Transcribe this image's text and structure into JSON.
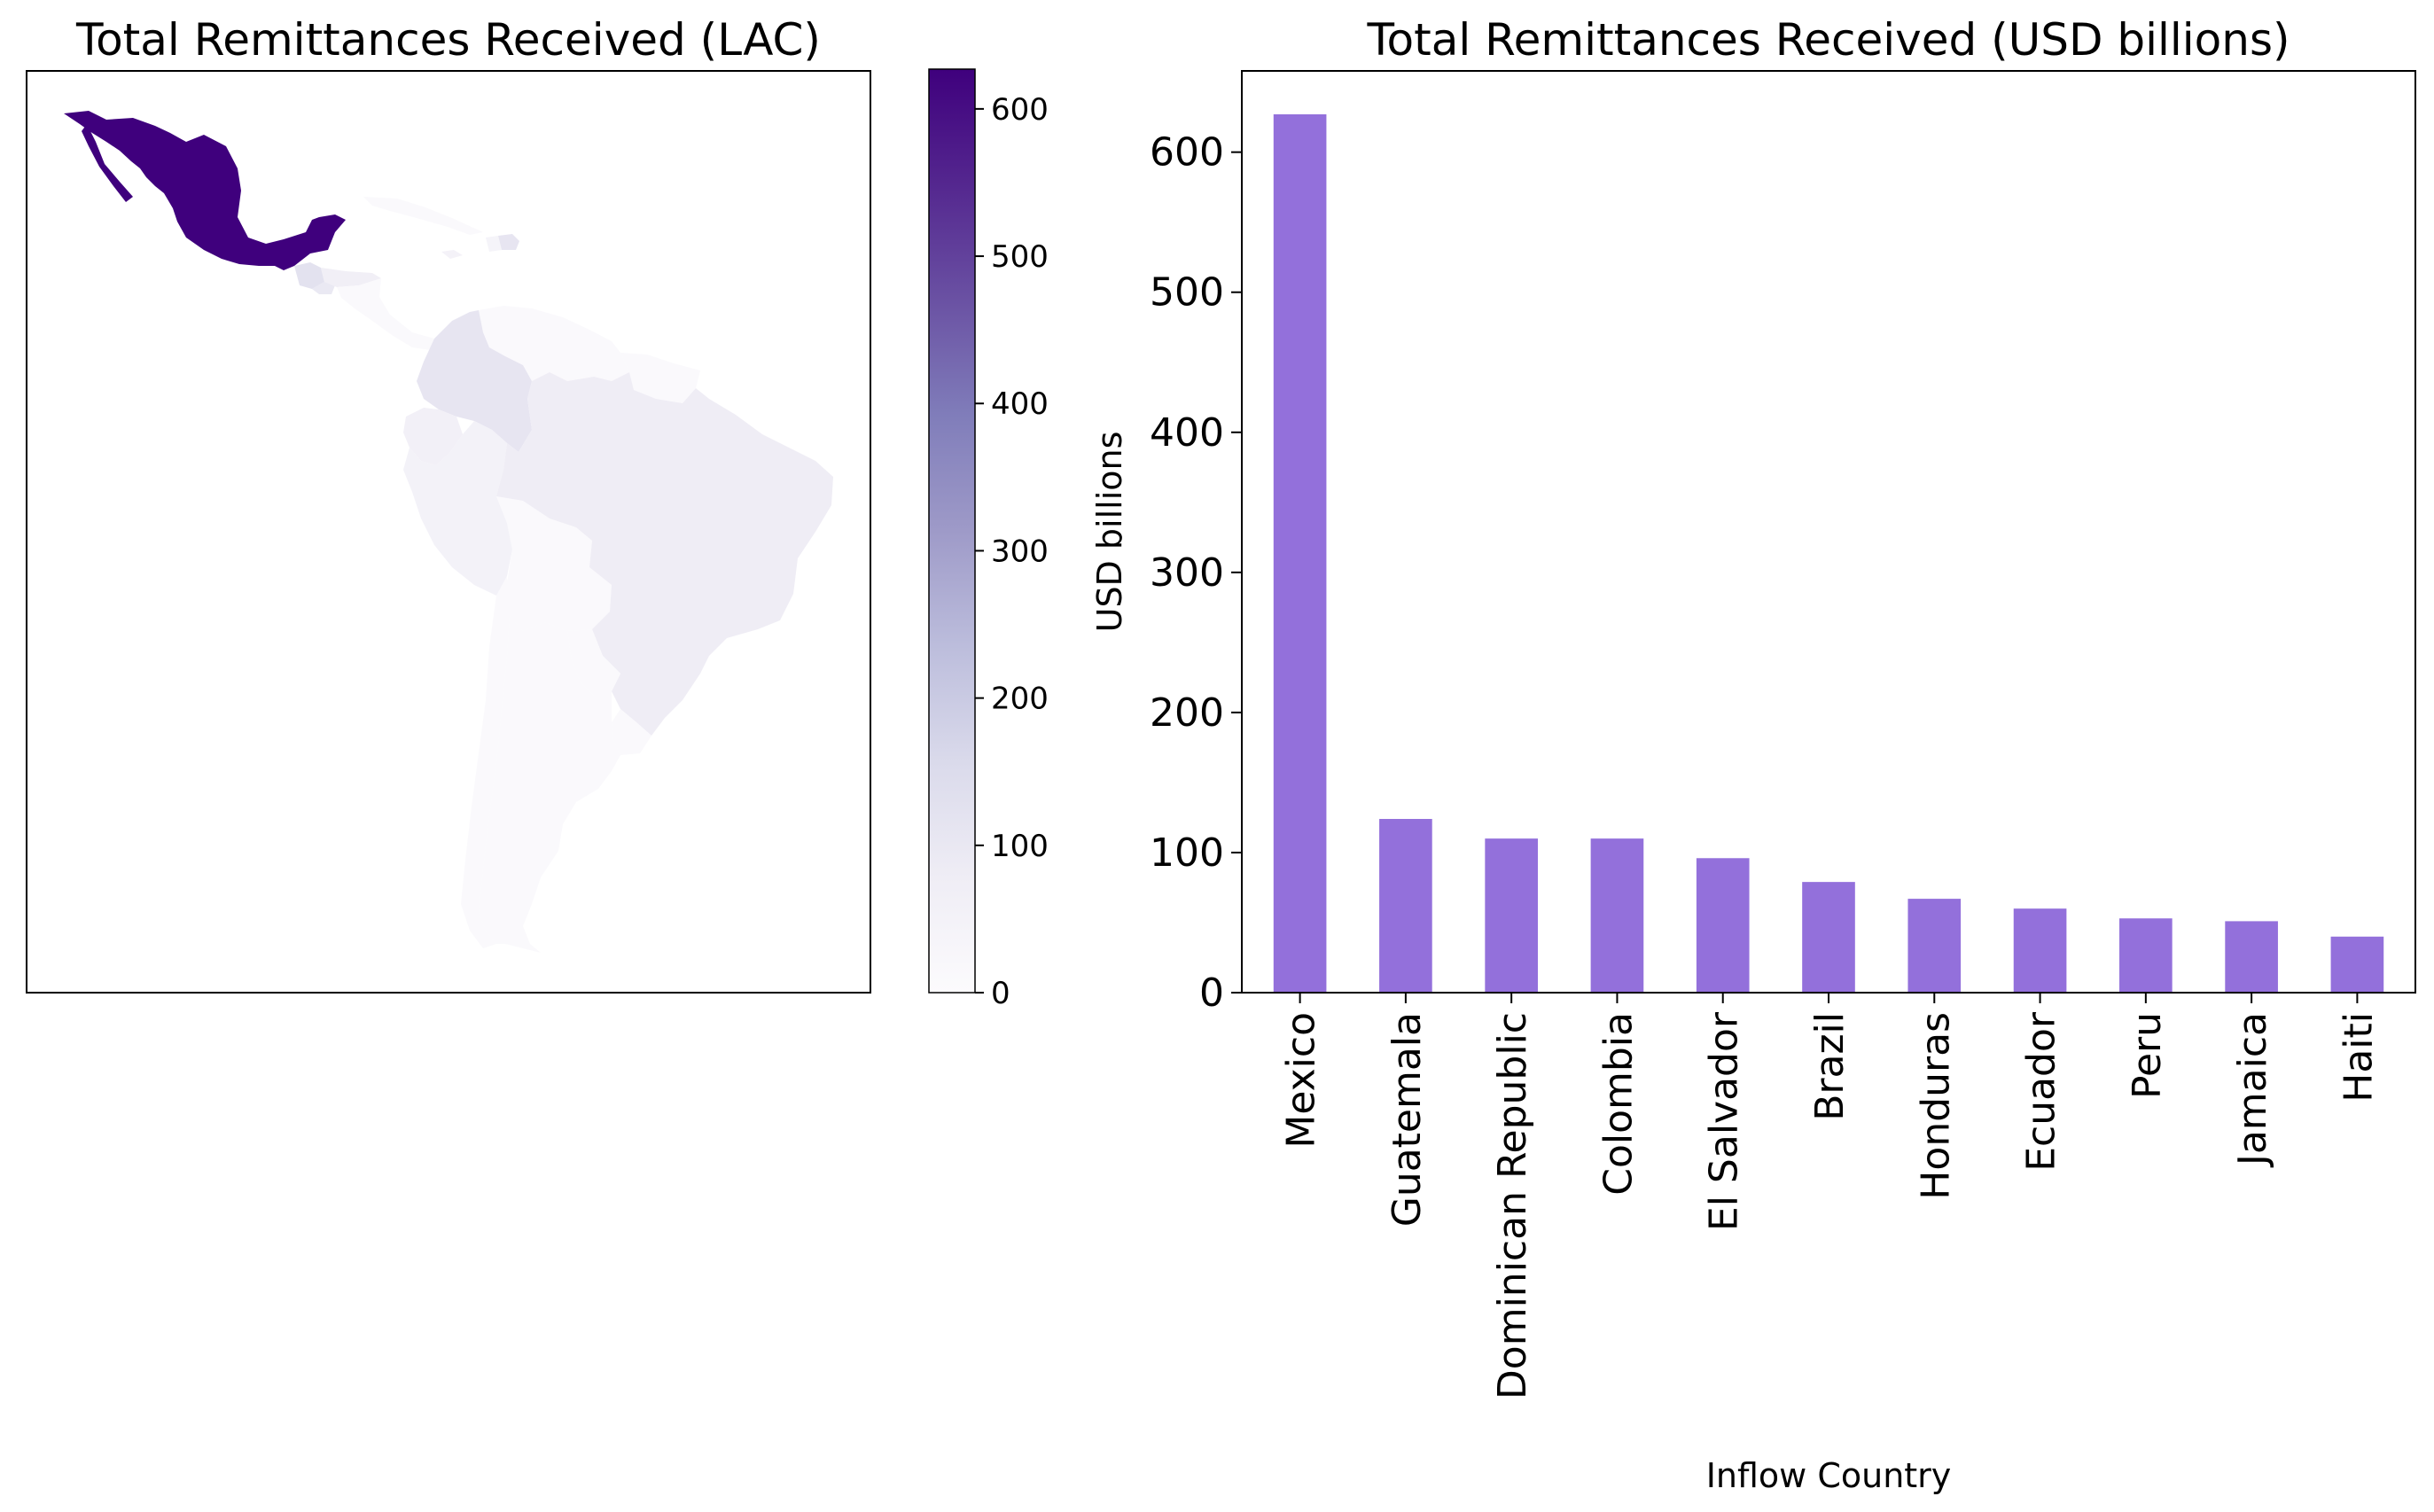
{
  "chart_data": [
    {
      "type": "choropleth",
      "title": "Total Remittances Received (LAC)",
      "colorbar": {
        "min": 0,
        "max": 627,
        "ticks": [
          0,
          100,
          200,
          300,
          400,
          500,
          600
        ],
        "colormap": [
          "#fcfbfd",
          "#efedf5",
          "#dadaeb",
          "#bcbddc",
          "#9e9ac8",
          "#807dba",
          "#6a51a3",
          "#54278f",
          "#3f007d"
        ]
      },
      "regions": [
        {
          "name": "Mexico",
          "value": 627
        },
        {
          "name": "Guatemala",
          "value": 124
        },
        {
          "name": "Honduras",
          "value": 67
        },
        {
          "name": "El Salvador",
          "value": 96
        },
        {
          "name": "Dominican Republic",
          "value": 110
        },
        {
          "name": "Haiti",
          "value": 40
        },
        {
          "name": "Jamaica",
          "value": 51
        },
        {
          "name": "Colombia",
          "value": 110
        },
        {
          "name": "Ecuador",
          "value": 60
        },
        {
          "name": "Peru",
          "value": 53
        },
        {
          "name": "Brazil",
          "value": 79
        }
      ]
    },
    {
      "type": "bar",
      "title": "Total Remittances Received (USD billions)",
      "xlabel": "Inflow Country",
      "ylabel": "USD billions",
      "categories": [
        "Mexico",
        "Guatemala",
        "Dominican Republic",
        "Colombia",
        "El Salvador",
        "Brazil",
        "Honduras",
        "Ecuador",
        "Peru",
        "Jamaica",
        "Haiti"
      ],
      "values": [
        627,
        124,
        110,
        110,
        96,
        79,
        67,
        60,
        53,
        51,
        40
      ],
      "ylim": [
        0,
        658
      ],
      "yticks": [
        0,
        100,
        200,
        300,
        400,
        500,
        600
      ],
      "bar_color": "#9370db"
    }
  ]
}
